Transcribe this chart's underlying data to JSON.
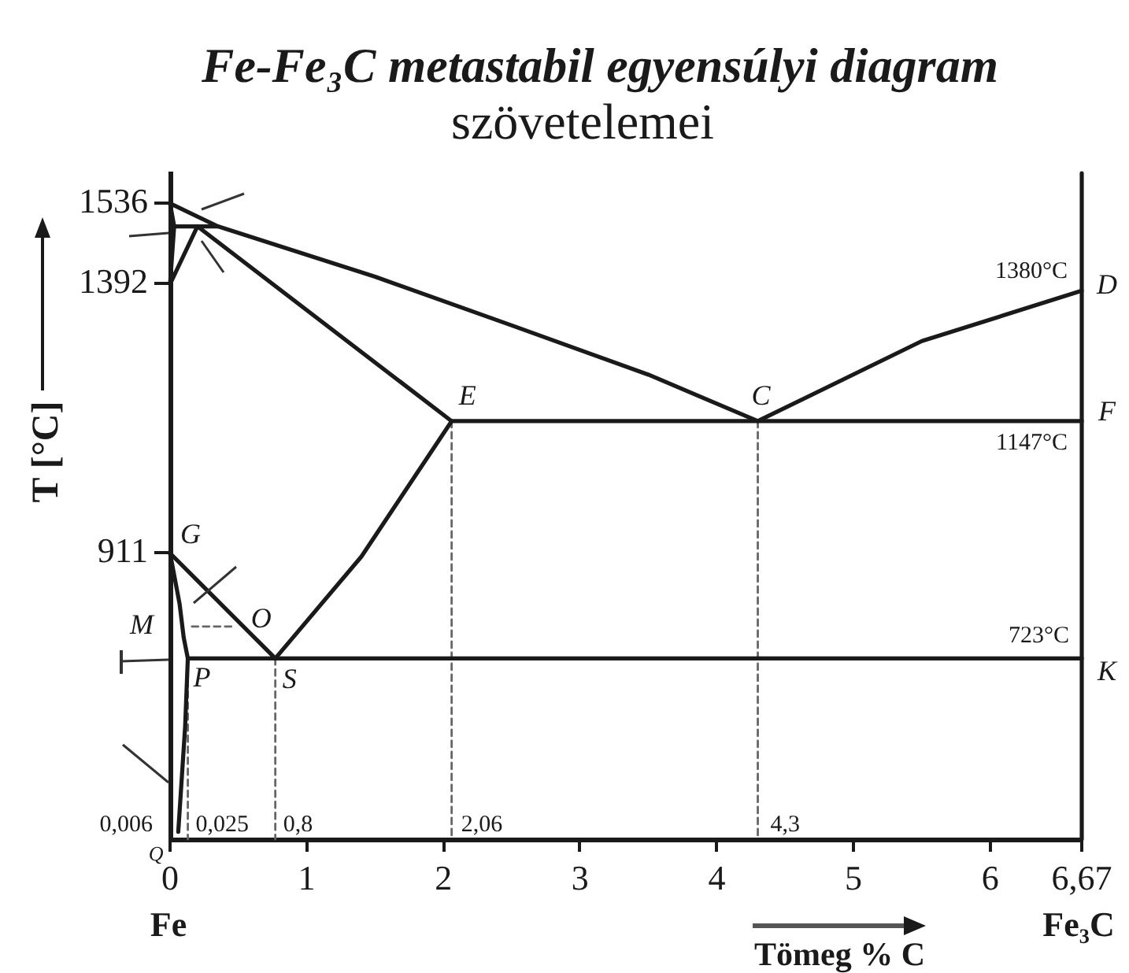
{
  "chart_data": {
    "type": "line",
    "title": "Fe-Fe₃C metastabil egyensúlyi diagram",
    "subtitle": "szövetelemei",
    "xlabel": "Tömeg % C",
    "ylabel": "T [°C]",
    "xlim": [
      0,
      6.67
    ],
    "xticks": [
      0,
      1,
      2,
      3,
      4,
      5,
      6,
      {
        "value": 6.67,
        "label": "6,67"
      }
    ],
    "ylim": [
      400,
      1590
    ],
    "yticks": [
      911,
      1392,
      1536
    ],
    "grid": false,
    "legend": false,
    "marker": "none",
    "line_style": "solid",
    "series": [
      {
        "color": "#1a1a1a",
        "x": [
          0.03,
          0,
          0.35,
          1.5,
          2.5,
          3.5,
          4.3,
          5.5,
          6.67
        ],
        "values": [
          1495,
          1536,
          1495,
          1405,
          1318,
          1230,
          1147,
          1290,
          1380
        ]
      },
      {
        "color": "#1a1a1a",
        "x": [
          0.35,
          0.03,
          0,
          0.2,
          2.06,
          6.67
        ],
        "values": [
          1495,
          1495,
          1392,
          1495,
          1147,
          1147
        ]
      },
      {
        "color": "#1a1a1a",
        "x": [
          0,
          0.77,
          1.4,
          2.06
        ],
        "values": [
          911,
          723,
          905,
          1147
        ]
      },
      {
        "color": "#1a1a1a",
        "x": [
          0.13,
          6.67
        ],
        "values": [
          723,
          723
        ]
      },
      {
        "color": "#1a1a1a",
        "x": [
          0,
          0.07,
          0.1,
          0.13,
          0.11,
          0.06
        ],
        "values": [
          911,
          820,
          760,
          723,
          600,
          413
        ]
      },
      {
        "color": "#1a1a1a",
        "x": [
          6.67,
          6.67
        ],
        "values": [
          400,
          1590
        ]
      },
      {
        "color": "#666666",
        "line_style": "dashed",
        "x": [
          0.13,
          0.13
        ],
        "values": [
          723,
          400
        ]
      },
      {
        "color": "#666666",
        "line_style": "dashed",
        "x": [
          0.77,
          0.77
        ],
        "values": [
          723,
          400
        ]
      },
      {
        "color": "#666666",
        "line_style": "dashed",
        "x": [
          2.06,
          2.06
        ],
        "values": [
          1147,
          400
        ]
      },
      {
        "color": "#666666",
        "line_style": "dashed",
        "x": [
          4.3,
          4.3
        ],
        "values": [
          1147,
          400
        ]
      },
      {
        "color": "#666666",
        "line_style": "dashed",
        "x": [
          0.16,
          0.45
        ],
        "values": [
          780,
          780
        ]
      }
    ],
    "annotations": [
      {
        "text": "G",
        "x": 0,
        "y": 911
      },
      "M",
      {
        "text": "O",
        "x": 0.54,
        "y": 780
      },
      {
        "text": "P",
        "x": 0.13,
        "y": 723
      },
      {
        "text": "S",
        "x": 0.77,
        "y": 723
      },
      {
        "text": "E",
        "x": 2.06,
        "y": 1147
      },
      {
        "text": "C",
        "x": 4.3,
        "y": 1147
      },
      {
        "text": "D",
        "x": 6.67,
        "y": 1380
      },
      {
        "text": "F",
        "x": 6.67,
        "y": 1147
      },
      {
        "text": "K",
        "x": 6.67,
        "y": 723
      },
      {
        "text": "1380°C",
        "x": 6.67,
        "y": 1380
      },
      {
        "text": "1147°C",
        "x": 6.67,
        "y": 1147
      },
      {
        "text": "723°C",
        "x": 6.67,
        "y": 723
      },
      "0,006",
      {
        "text": "0,025",
        "x": 0.13,
        "y": 400
      },
      {
        "text": "0,8",
        "x": 0.77,
        "y": 400
      },
      {
        "text": "2,06",
        "x": 2.06,
        "y": 400
      },
      {
        "text": "4,3",
        "x": 4.3,
        "y": 400
      },
      "Q",
      "Fe",
      "Fe₃C"
    ]
  }
}
